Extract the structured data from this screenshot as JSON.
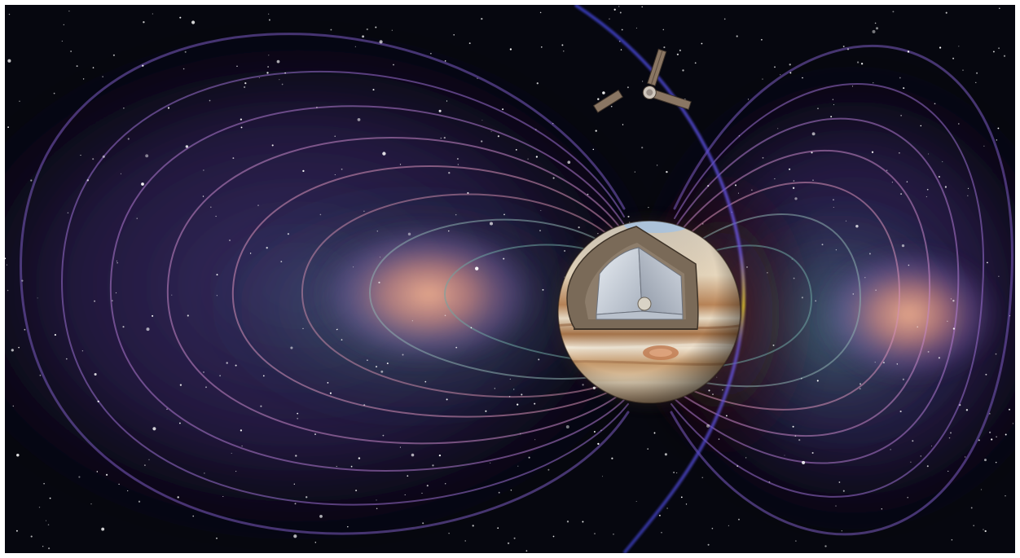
{
  "image": {
    "subject": "illustration",
    "colors": {
      "space": "#05060e",
      "belt_pink": "#f0a58c",
      "belt_purple": "#8a5ac0",
      "belt_violet": "#5e3fa6",
      "belt_teal": "#4f8f86",
      "orbit": "#3a40c8",
      "orbit_highlight": "#f0d030",
      "planet_cream": "#e8d9c0",
      "planet_tan": "#b88a5a",
      "planet_brown": "#8a5a35",
      "core_grey": "#c9ced6",
      "spacecraft": "#7a6a5a"
    },
    "elements": [
      "starfield-icon",
      "radiation-belts-icon",
      "spacecraft-orbit-icon",
      "spacecraft-icon",
      "planet-icon",
      "planet-interior-cutaway-icon"
    ]
  }
}
